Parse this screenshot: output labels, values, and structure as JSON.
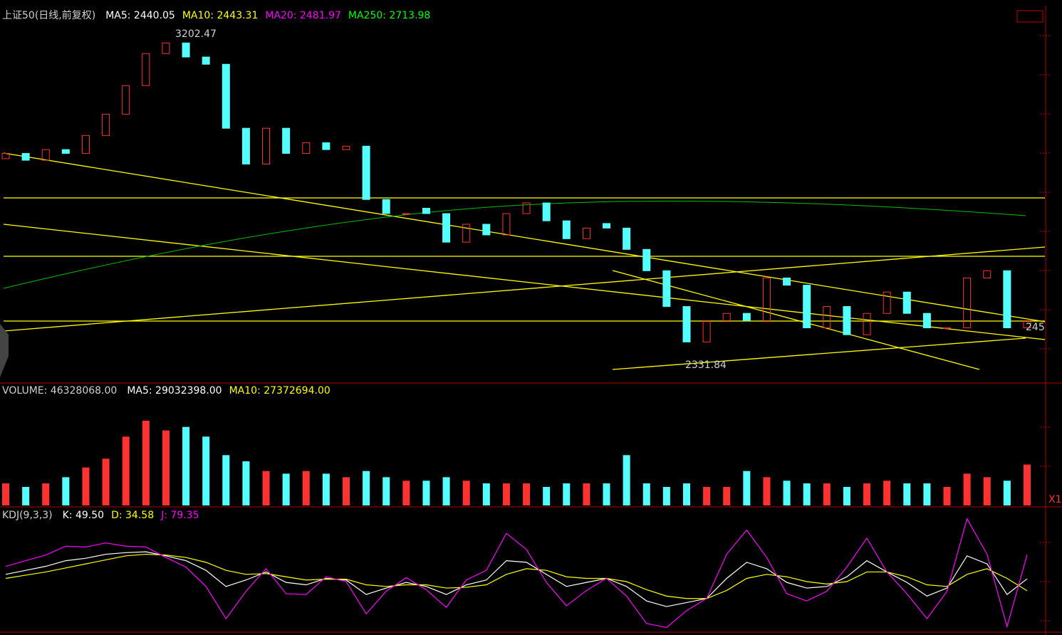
{
  "chart_data": [
    {
      "type": "candlestick",
      "title": "上证50(日线,前复权)",
      "legend": [
        {
          "text": "MA5: 2440.05",
          "color": "#ffffff"
        },
        {
          "text": "MA10: 2443.31",
          "color": "#ffff00"
        },
        {
          "text": "MA20: 2481.97",
          "color": "#ff00ff"
        },
        {
          "text": "MA250: 2713.98",
          "color": "#00ff00"
        }
      ],
      "annotations": [
        "3202.47",
        "2331.84",
        "245"
      ],
      "up_color": "#ff3232",
      "down_color": "#54ffff",
      "ylim": [
        2285,
        3268
      ],
      "open": [
        2870,
        2884,
        2866,
        2894,
        2884,
        2931,
        2987,
        3062,
        3146,
        3174,
        3137,
        3118,
        2950,
        2856,
        2950,
        2884,
        2912,
        2894,
        2903,
        2763,
        2726,
        2740,
        2726,
        2651,
        2698,
        2670,
        2726,
        2754,
        2707,
        2660,
        2700,
        2688,
        2632,
        2576,
        2482,
        2389,
        2445,
        2464,
        2445,
        2557,
        2538,
        2426,
        2482,
        2408,
        2464,
        2520,
        2464,
        2426,
        2426,
        2557,
        2576,
        2426
      ],
      "close": [
        2884,
        2866,
        2894,
        2884,
        2931,
        2987,
        3062,
        3146,
        3174,
        3137,
        3118,
        2950,
        2856,
        2950,
        2884,
        2912,
        2894,
        2903,
        2763,
        2726,
        2726,
        2726,
        2651,
        2698,
        2670,
        2726,
        2754,
        2707,
        2660,
        2688,
        2688,
        2632,
        2576,
        2482,
        2389,
        2445,
        2464,
        2445,
        2557,
        2538,
        2426,
        2482,
        2408,
        2464,
        2520,
        2464,
        2426,
        2426,
        2557,
        2576,
        2426,
        2445
      ]
    },
    {
      "type": "bar",
      "title": "VOLUME: 46328068.00",
      "legend": [
        {
          "text": "MA5: 29032398.00",
          "color": "#ffffff"
        },
        {
          "text": "MA10: 27372694.00",
          "color": "#ffff00"
        }
      ],
      "annotations": [
        "X1"
      ],
      "ylim": [
        0,
        121000000
      ],
      "values": [
        25000000,
        21000000,
        25000000,
        32000000,
        43000000,
        53000000,
        78000000,
        96000000,
        85000000,
        89000000,
        78000000,
        57000000,
        50000000,
        39000000,
        36000000,
        39000000,
        36000000,
        32000000,
        39000000,
        32000000,
        28000000,
        28000000,
        32000000,
        28000000,
        25000000,
        25000000,
        25000000,
        21000000,
        25000000,
        25000000,
        25000000,
        57000000,
        25000000,
        21000000,
        25000000,
        21000000,
        21000000,
        39000000,
        32000000,
        28000000,
        25000000,
        25000000,
        21000000,
        25000000,
        28000000,
        25000000,
        25000000,
        21000000,
        36000000,
        32000000,
        28000000,
        46328068
      ]
    },
    {
      "type": "line",
      "title": "KDJ(9,3,3)",
      "ylim": [
        -15,
        130
      ],
      "series": [
        {
          "name": "K: 49.50",
          "color": "#ffffff",
          "values": [
            55,
            60,
            65,
            72,
            75,
            80,
            82,
            83,
            78,
            72,
            60,
            40,
            48,
            58,
            45,
            42,
            50,
            48,
            30,
            38,
            45,
            40,
            30,
            42,
            48,
            72,
            70,
            55,
            40,
            45,
            50,
            40,
            22,
            15,
            20,
            25,
            50,
            70,
            62,
            45,
            38,
            40,
            52,
            72,
            58,
            45,
            28,
            38,
            78,
            68,
            30,
            49.5
          ]
        },
        {
          "name": "D: 34.58",
          "color": "#ffff00",
          "values": [
            50,
            54,
            58,
            63,
            68,
            73,
            78,
            80,
            79,
            76,
            70,
            60,
            55,
            56,
            52,
            48,
            49,
            49,
            42,
            40,
            42,
            42,
            38,
            39,
            42,
            55,
            62,
            60,
            52,
            50,
            50,
            46,
            36,
            28,
            25,
            25,
            35,
            50,
            55,
            52,
            46,
            43,
            46,
            58,
            58,
            52,
            42,
            40,
            55,
            62,
            50,
            34.58
          ]
        },
        {
          "name": "J: 79.35",
          "color": "#ff00ff",
          "values": [
            65,
            72,
            79,
            90,
            89,
            94,
            90,
            89,
            76,
            64,
            40,
            0,
            34,
            62,
            31,
            30,
            52,
            46,
            6,
            34,
            51,
            36,
            14,
            48,
            60,
            106,
            86,
            45,
            16,
            35,
            50,
            28,
            -6,
            -11,
            10,
            25,
            80,
            110,
            76,
            31,
            22,
            34,
            64,
            100,
            58,
            31,
            0,
            34,
            124,
            80,
            -10,
            79.35
          ]
        }
      ]
    }
  ]
}
